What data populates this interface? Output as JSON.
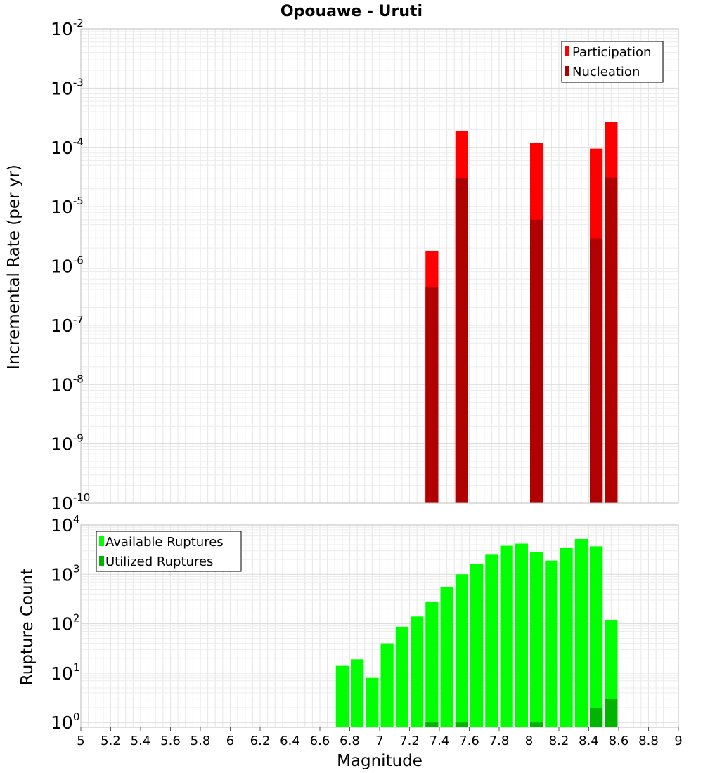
{
  "title": "Opouawe - Uruti",
  "chart_data": [
    {
      "type": "bar",
      "ylabel": "Incremental Rate (per yr)",
      "xlabel": "",
      "yscale": "log",
      "ylim": [
        1e-10,
        0.01
      ],
      "xlim": [
        5,
        9
      ],
      "bar_width": 0.1,
      "legend": "top-right",
      "grid": true,
      "y_tick_exponents": [
        "-10",
        "-9",
        "-8",
        "-7",
        "-6",
        "-5",
        "-4",
        "-3",
        "-2"
      ],
      "series": [
        {
          "name": "Participation",
          "color": "#ff0000",
          "x": [
            7.35,
            7.55,
            8.05,
            8.45,
            8.55
          ],
          "values": [
            1.8e-06,
            0.00019,
            0.00012,
            9.5e-05,
            0.00027
          ]
        },
        {
          "name": "Nucleation",
          "color": "#b00000",
          "x": [
            7.35,
            7.55,
            8.05,
            8.45,
            8.55
          ],
          "values": [
            4.4e-07,
            3e-05,
            6e-06,
            2.9e-06,
            3.1e-05
          ]
        }
      ]
    },
    {
      "type": "bar",
      "ylabel": "Rupture Count",
      "xlabel": "Magnitude",
      "yscale": "log",
      "ylim": [
        0.8,
        10000
      ],
      "xlim": [
        5,
        9
      ],
      "bar_width": 0.1,
      "legend": "top-left",
      "grid": true,
      "y_tick_exponents": [
        "0",
        "1",
        "2",
        "3",
        "4"
      ],
      "x_ticks": [
        "5",
        "5.2",
        "5.4",
        "5.6",
        "5.8",
        "6",
        "6.2",
        "6.4",
        "6.6",
        "6.8",
        "7",
        "7.2",
        "7.4",
        "7.6",
        "7.8",
        "8",
        "8.2",
        "8.4",
        "8.6",
        "8.8",
        "9"
      ],
      "series": [
        {
          "name": "Available Ruptures",
          "color": "#00ff00",
          "x": [
            6.75,
            6.85,
            6.95,
            7.05,
            7.15,
            7.25,
            7.35,
            7.45,
            7.55,
            7.65,
            7.75,
            7.85,
            7.95,
            8.05,
            8.15,
            8.25,
            8.35,
            8.45,
            8.55
          ],
          "values": [
            14,
            19,
            8,
            40,
            87,
            140,
            280,
            560,
            1000,
            1600,
            2500,
            3800,
            4200,
            2800,
            1900,
            3400,
            5200,
            3700,
            120
          ]
        },
        {
          "name": "Utilized Ruptures",
          "color": "#00b400",
          "x": [
            7.35,
            7.55,
            8.05,
            8.45,
            8.55
          ],
          "values": [
            1,
            1,
            1,
            2,
            3
          ]
        }
      ]
    }
  ]
}
